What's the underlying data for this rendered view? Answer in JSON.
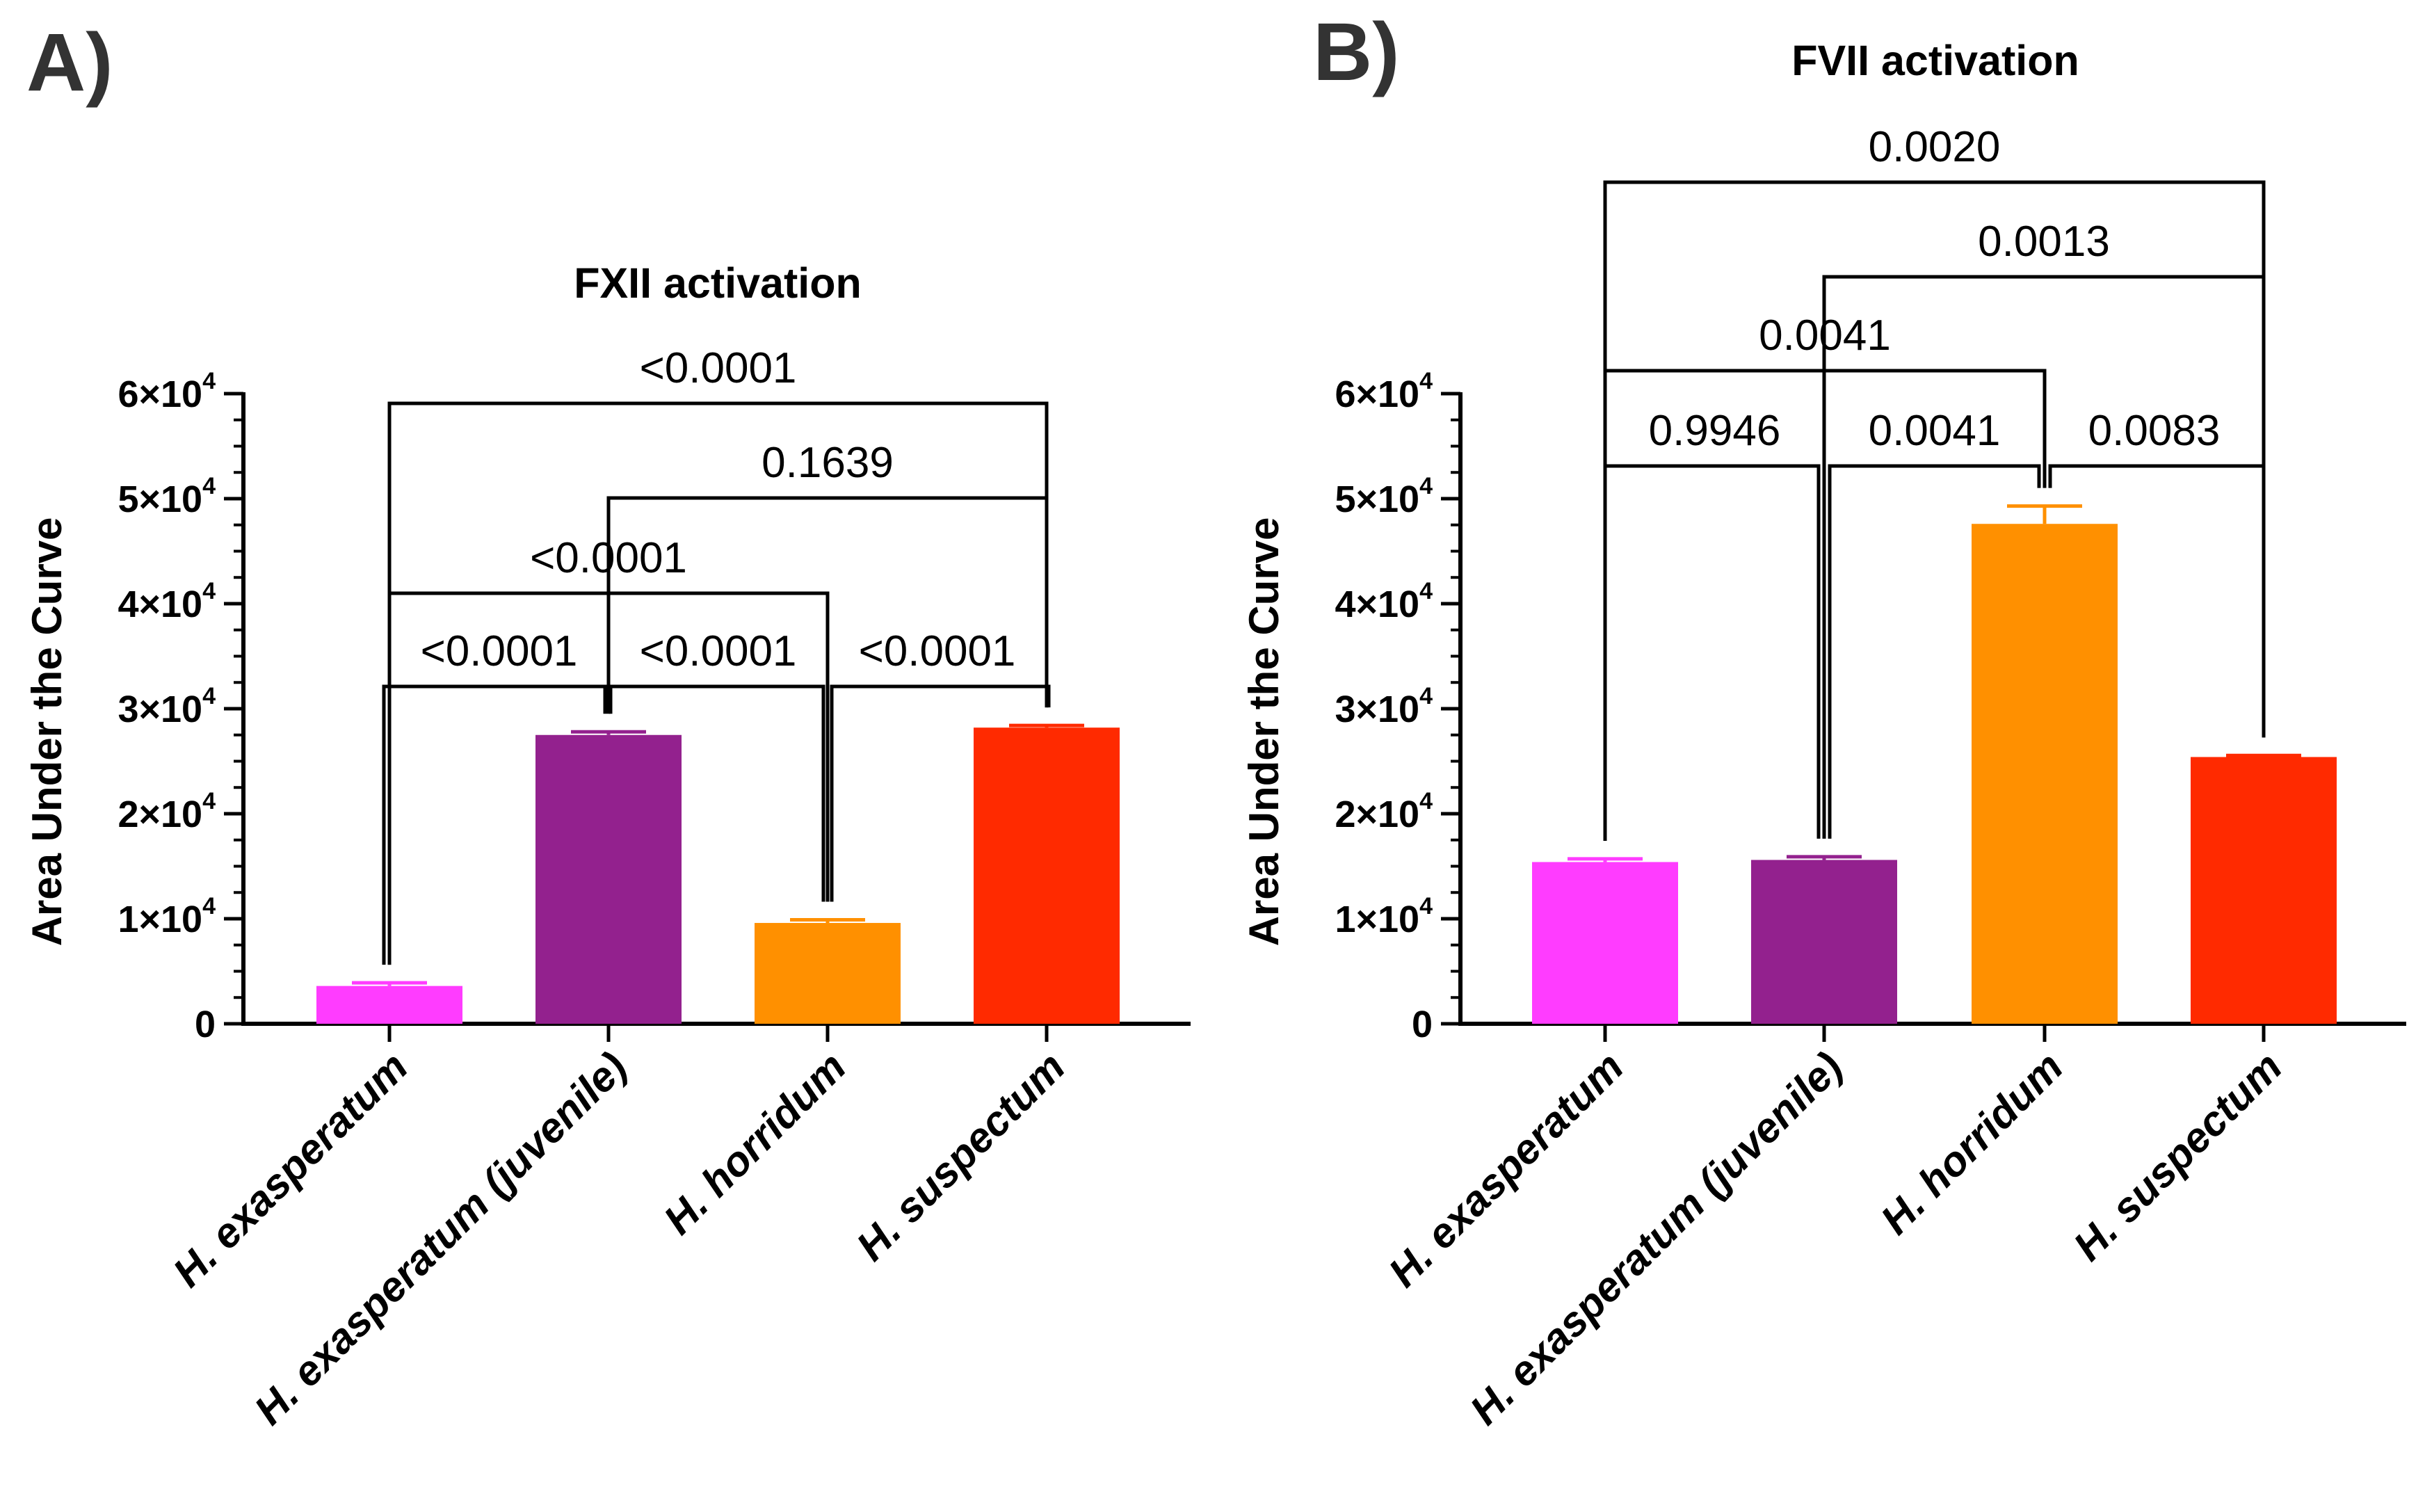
{
  "chart_data": [
    {
      "panel": "A)",
      "type": "bar",
      "title": "FXII activation",
      "xlabel": "",
      "ylabel": "Area Under the Curve",
      "ylim": [
        0,
        60000
      ],
      "yticks": [
        {
          "value": 0,
          "label": "0"
        },
        {
          "value": 10000,
          "label": "1×10",
          "sup": "4"
        },
        {
          "value": 20000,
          "label": "2×10",
          "sup": "4"
        },
        {
          "value": 30000,
          "label": "3×10",
          "sup": "4"
        },
        {
          "value": 40000,
          "label": "4×10",
          "sup": "4"
        },
        {
          "value": 50000,
          "label": "5×10",
          "sup": "4"
        },
        {
          "value": 60000,
          "label": "6×10",
          "sup": "4"
        }
      ],
      "categories": [
        "H. exasperatum",
        "H. exasperatum (juvenile)",
        "H. horridum",
        "H. suspectum"
      ],
      "values": [
        3600,
        27500,
        9600,
        28200
      ],
      "errors": [
        300,
        300,
        300,
        200
      ],
      "colors": [
        "#ff3cff",
        "#93218e",
        "#ff9000",
        "#ff2a00"
      ],
      "comparisons": [
        {
          "from": 0,
          "to": 1,
          "label": "<0.0001"
        },
        {
          "from": 1,
          "to": 2,
          "label": "<0.0001"
        },
        {
          "from": 2,
          "to": 3,
          "label": "<0.0001"
        },
        {
          "from": 0,
          "to": 2,
          "label": "<0.0001"
        },
        {
          "from": 1,
          "to": 3,
          "label": "0.1639"
        },
        {
          "from": 0,
          "to": 3,
          "label": "<0.0001"
        }
      ]
    },
    {
      "panel": "B)",
      "type": "bar",
      "title": "FVII activation",
      "xlabel": "",
      "ylabel": "Area Under the Curve",
      "ylim": [
        0,
        60000
      ],
      "yticks": [
        {
          "value": 0,
          "label": "0"
        },
        {
          "value": 10000,
          "label": "1×10",
          "sup": "4"
        },
        {
          "value": 20000,
          "label": "2×10",
          "sup": "4"
        },
        {
          "value": 30000,
          "label": "3×10",
          "sup": "4"
        },
        {
          "value": 40000,
          "label": "4×10",
          "sup": "4"
        },
        {
          "value": 50000,
          "label": "5×10",
          "sup": "4"
        },
        {
          "value": 60000,
          "label": "6×10",
          "sup": "4"
        }
      ],
      "categories": [
        "H. exasperatum",
        "H. exasperatum (juvenile)",
        "H. horridum",
        "H. suspectum"
      ],
      "values": [
        15400,
        15600,
        47600,
        25400
      ],
      "errors": [
        300,
        300,
        1700,
        150
      ],
      "colors": [
        "#ff3cff",
        "#93218e",
        "#ff9000",
        "#ff2a00"
      ],
      "comparisons": [
        {
          "from": 0,
          "to": 1,
          "label": "0.9946"
        },
        {
          "from": 1,
          "to": 2,
          "label": "0.0041"
        },
        {
          "from": 2,
          "to": 3,
          "label": "0.0083"
        },
        {
          "from": 0,
          "to": 2,
          "label": "0.0041"
        },
        {
          "from": 1,
          "to": 3,
          "label": "0.0013"
        },
        {
          "from": 0,
          "to": 3,
          "label": "0.0020"
        }
      ]
    }
  ]
}
